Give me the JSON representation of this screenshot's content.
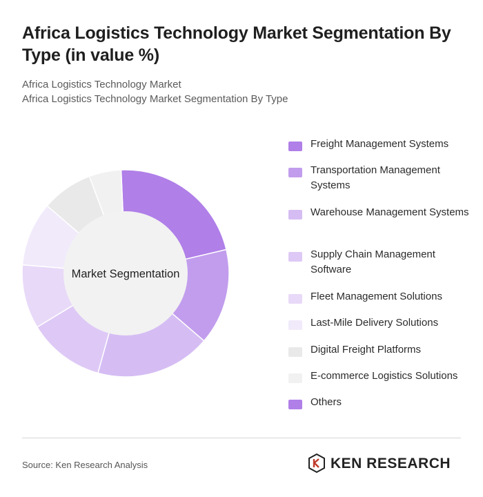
{
  "header": {
    "title": "Africa Logistics Technology Market Segmentation By Type (in value %)",
    "subtitle_1": "Africa Logistics Technology Market",
    "subtitle_2": "Africa Logistics Technology Market Segmentation By Type"
  },
  "chart_data": {
    "type": "pie",
    "center_label": "Market Segmentation",
    "categories": [
      "Freight Management Systems",
      "Transportation Management Systems",
      "Warehouse Management Systems",
      "Supply Chain Management Software",
      "Fleet Management Solutions",
      "Last-Mile Delivery Solutions",
      "Digital Freight Platforms",
      "E-commerce Logistics Solutions",
      "Others"
    ],
    "values": [
      22,
      15,
      18,
      12,
      10,
      10,
      8,
      5,
      0
    ],
    "colors": [
      "#b07fe8",
      "#c29ded",
      "#d5bdf4",
      "#dec9f6",
      "#e8d9f8",
      "#f1eafb",
      "#e9e9e9",
      "#f1f1f1",
      "#b07fe8"
    ],
    "legend_position": "right"
  },
  "footer": {
    "source": "Source: Ken Research Analysis",
    "logo_text": "KEN RESEARCH"
  }
}
